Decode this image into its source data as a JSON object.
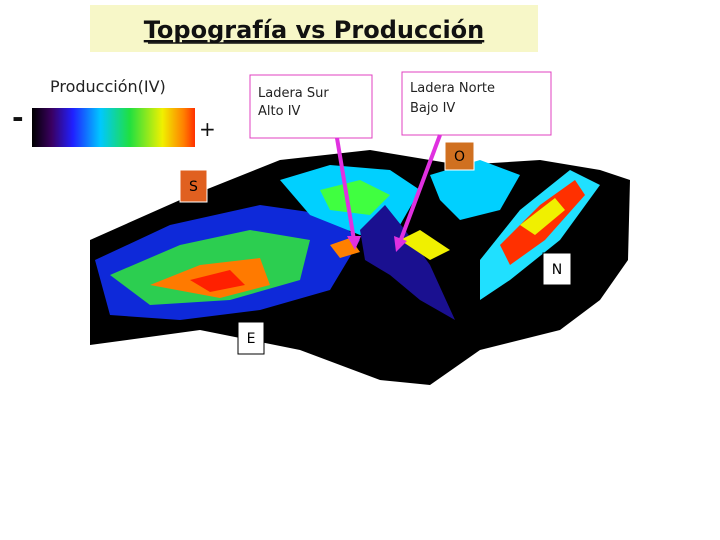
{
  "title": "Topografía vs Producción",
  "legend": {
    "label": "Producción(IV)",
    "low": "-",
    "high": "+"
  },
  "callouts": [
    {
      "lines": [
        "Ladera Sur",
        "Alto IV"
      ]
    },
    {
      "lines": [
        "Ladera Norte",
        "Bajo IV"
      ]
    }
  ],
  "directions": {
    "west": "O",
    "south": "S",
    "north": "N",
    "east": "E"
  }
}
